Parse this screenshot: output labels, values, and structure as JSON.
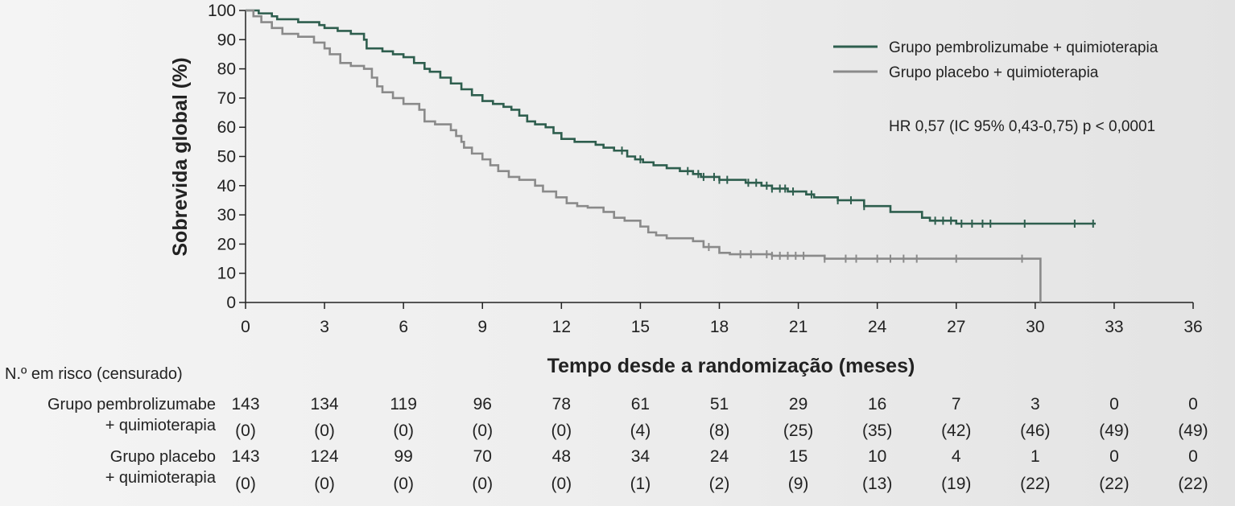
{
  "chart_data": {
    "type": "line",
    "subtype": "kaplan-meier",
    "ylabel": "Sobrevida global (%)",
    "xlabel": "Tempo desde a randomização (meses)",
    "xlim": [
      0,
      36
    ],
    "ylim": [
      0,
      100
    ],
    "x_ticks": [
      0,
      3,
      6,
      9,
      12,
      15,
      18,
      21,
      24,
      27,
      30,
      33,
      36
    ],
    "y_ticks": [
      0,
      10,
      20,
      30,
      40,
      50,
      60,
      70,
      80,
      90,
      100
    ],
    "legend_position": "top-right",
    "annotation": "HR 0,57 (IC 95% 0,43-0,75) p < 0,0001",
    "series": [
      {
        "name": "Grupo pembrolizumabe + quimioterapia",
        "color": "#2e5e4e",
        "steps": [
          [
            0,
            100
          ],
          [
            0.5,
            99
          ],
          [
            1,
            98
          ],
          [
            1.2,
            97
          ],
          [
            2,
            96
          ],
          [
            2.8,
            95
          ],
          [
            3,
            94
          ],
          [
            3.5,
            93
          ],
          [
            4,
            92
          ],
          [
            4.5,
            90
          ],
          [
            4.6,
            87
          ],
          [
            5.2,
            86
          ],
          [
            5.6,
            85
          ],
          [
            6,
            84
          ],
          [
            6.4,
            82
          ],
          [
            6.8,
            80
          ],
          [
            7,
            79
          ],
          [
            7.4,
            77
          ],
          [
            7.8,
            75
          ],
          [
            8.2,
            73
          ],
          [
            8.6,
            71
          ],
          [
            9,
            69
          ],
          [
            9.4,
            68
          ],
          [
            9.8,
            67
          ],
          [
            10.1,
            66
          ],
          [
            10.4,
            64
          ],
          [
            10.7,
            62
          ],
          [
            11,
            61
          ],
          [
            11.4,
            60
          ],
          [
            11.7,
            58
          ],
          [
            12,
            56
          ],
          [
            12.5,
            55
          ],
          [
            13.3,
            54
          ],
          [
            13.6,
            53
          ],
          [
            14,
            52
          ],
          [
            14.5,
            50
          ],
          [
            14.8,
            49
          ],
          [
            15.1,
            48
          ],
          [
            15.5,
            47
          ],
          [
            16,
            46
          ],
          [
            16.5,
            45
          ],
          [
            17,
            44
          ],
          [
            17.3,
            43
          ],
          [
            18,
            42
          ],
          [
            19,
            41
          ],
          [
            19.6,
            40
          ],
          [
            20,
            39
          ],
          [
            20.6,
            38
          ],
          [
            21,
            38
          ],
          [
            21.3,
            37
          ],
          [
            21.6,
            36
          ],
          [
            22.5,
            35
          ],
          [
            23.5,
            33
          ],
          [
            24.5,
            31
          ],
          [
            25,
            31
          ],
          [
            25.7,
            29
          ],
          [
            26,
            28
          ],
          [
            27,
            27
          ],
          [
            32.3,
            27
          ]
        ],
        "censor_x": [
          14.3,
          15,
          16.8,
          17.2,
          17.4,
          17.8,
          18,
          18.3,
          19.1,
          19.4,
          19.8,
          20,
          20.3,
          20.5,
          20.8,
          21.5,
          22.5,
          23,
          23.5,
          26.2,
          26.5,
          26.8,
          27.2,
          27.6,
          28,
          28.3,
          29.6,
          31.5,
          32.2
        ]
      },
      {
        "name": "Grupo placebo + quimioterapia",
        "color": "#8a8a8a",
        "steps": [
          [
            0,
            100
          ],
          [
            0.3,
            98
          ],
          [
            0.6,
            96
          ],
          [
            1,
            94
          ],
          [
            1.4,
            92
          ],
          [
            2,
            91
          ],
          [
            2.6,
            89
          ],
          [
            3,
            87
          ],
          [
            3.2,
            85
          ],
          [
            3.6,
            82
          ],
          [
            4,
            81
          ],
          [
            4.5,
            80
          ],
          [
            4.8,
            77
          ],
          [
            5,
            74
          ],
          [
            5.2,
            72
          ],
          [
            5.6,
            70
          ],
          [
            6,
            68
          ],
          [
            6.6,
            66
          ],
          [
            6.8,
            62
          ],
          [
            7.2,
            61
          ],
          [
            7.5,
            61
          ],
          [
            7.8,
            59
          ],
          [
            8,
            57
          ],
          [
            8.2,
            55
          ],
          [
            8.3,
            53
          ],
          [
            8.6,
            51
          ],
          [
            9,
            49
          ],
          [
            9.3,
            47
          ],
          [
            9.6,
            45
          ],
          [
            10,
            43
          ],
          [
            10.4,
            42
          ],
          [
            11,
            40
          ],
          [
            11.3,
            38
          ],
          [
            11.8,
            36
          ],
          [
            12.2,
            34
          ],
          [
            12.6,
            33
          ],
          [
            13,
            32.5
          ],
          [
            13.6,
            31
          ],
          [
            14,
            29
          ],
          [
            14.4,
            28
          ],
          [
            15,
            26
          ],
          [
            15.3,
            24
          ],
          [
            15.6,
            23
          ],
          [
            16,
            22
          ],
          [
            17,
            21
          ],
          [
            17.4,
            19
          ],
          [
            18,
            17
          ],
          [
            18.4,
            16.5
          ],
          [
            20,
            16
          ],
          [
            20.6,
            16
          ],
          [
            22,
            15
          ],
          [
            30.2,
            15
          ],
          [
            30.2,
            0
          ]
        ],
        "censor_x": [
          17.6,
          18.8,
          19.2,
          19.8,
          20,
          20.3,
          20.6,
          20.9,
          21.2,
          22,
          22.8,
          23.2,
          24,
          24.5,
          25,
          25.5,
          27,
          29.5
        ]
      }
    ],
    "risk_table": {
      "title": "N.º em risco (censurado)",
      "times": [
        0,
        3,
        6,
        9,
        12,
        15,
        18,
        21,
        24,
        27,
        30,
        33,
        36
      ],
      "rows": [
        {
          "label_line1": "Grupo pembrolizumabe",
          "label_line2": "+ quimioterapia",
          "at_risk": [
            "143",
            "134",
            "119",
            "96",
            "78",
            "61",
            "51",
            "29",
            "16",
            "7",
            "3",
            "0",
            "0"
          ],
          "censored": [
            "(0)",
            "(0)",
            "(0)",
            "(0)",
            "(0)",
            "(4)",
            "(8)",
            "(25)",
            "(35)",
            "(42)",
            "(46)",
            "(49)",
            "(49)"
          ]
        },
        {
          "label_line1": "Grupo placebo",
          "label_line2": "+ quimioterapia",
          "at_risk": [
            "143",
            "124",
            "99",
            "70",
            "48",
            "34",
            "24",
            "15",
            "10",
            "4",
            "1",
            "0",
            "0"
          ],
          "censored": [
            "(0)",
            "(0)",
            "(0)",
            "(0)",
            "(0)",
            "(1)",
            "(2)",
            "(9)",
            "(13)",
            "(19)",
            "(22)",
            "(22)",
            "(22)"
          ]
        }
      ]
    }
  }
}
